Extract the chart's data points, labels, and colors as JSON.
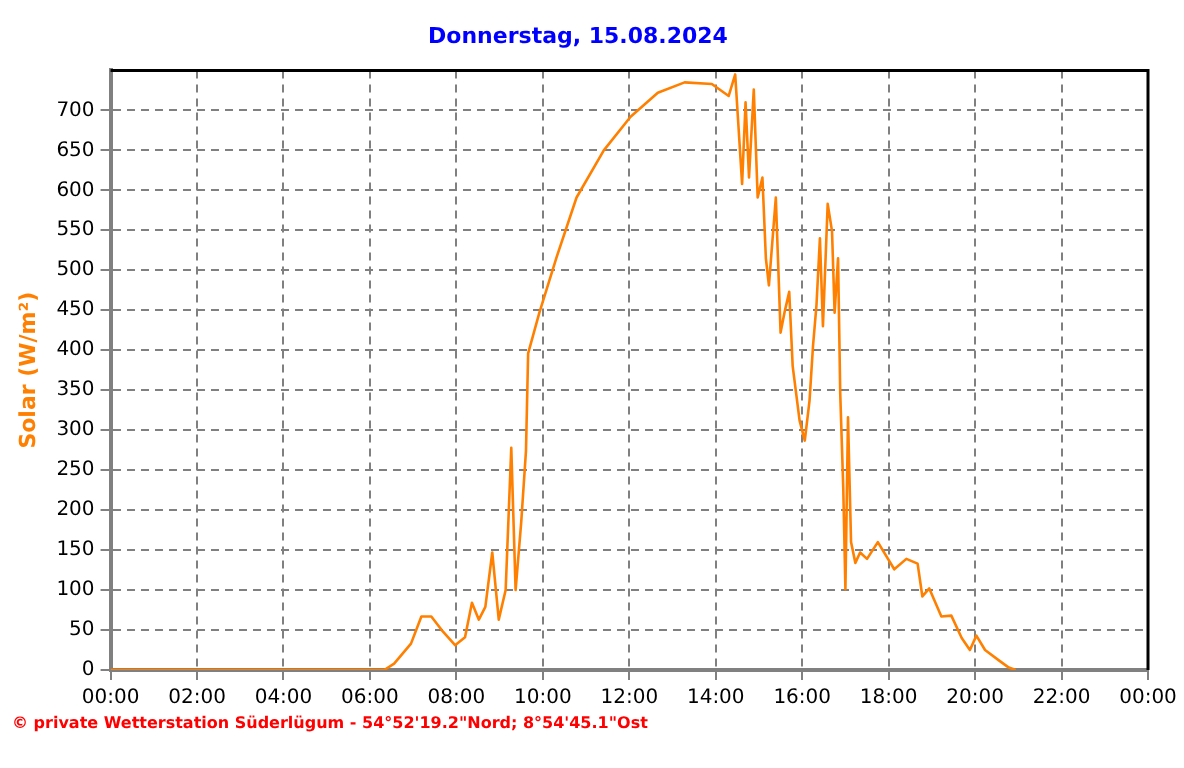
{
  "chart_data": {
    "type": "line",
    "title": "Donnerstag, 15.08.2024",
    "ylabel": "Solar (W/m²)",
    "annotations": [
      "© private Wetterstation Süderlügum - 54°52'19.2\"Nord; 8°54'45.1\"Ost"
    ],
    "series": [
      {
        "color": "#ff8000",
        "x": [
          0,
          6.33,
          6.56,
          6.95,
          7.19,
          7.42,
          7.66,
          7.97,
          8.2,
          8.36,
          8.52,
          8.67,
          8.83,
          8.98,
          9.14,
          9.27,
          9.37,
          9.5,
          9.61,
          9.66,
          9.92,
          10.31,
          10.78,
          11.41,
          12.03,
          12.66,
          13.28,
          13.91,
          14.3,
          14.45,
          14.61,
          14.69,
          14.77,
          14.88,
          14.97,
          15.08,
          15.16,
          15.23,
          15.39,
          15.5,
          15.59,
          15.7,
          15.78,
          15.86,
          15.94,
          16.06,
          16.17,
          16.25,
          16.33,
          16.41,
          16.48,
          16.59,
          16.69,
          16.75,
          16.83,
          16.88,
          16.95,
          17.0,
          17.06,
          17.13,
          17.23,
          17.34,
          17.5,
          17.75,
          18.13,
          18.41,
          18.67,
          18.78,
          18.94,
          19.22,
          19.45,
          19.69,
          19.88,
          20.03,
          20.23,
          20.55,
          20.78,
          20.94
        ],
        "values": [
          0,
          0,
          8,
          33,
          67,
          67,
          50,
          31,
          41,
          84,
          63,
          79,
          147,
          63,
          100,
          278,
          100,
          185,
          274,
          396,
          447,
          515,
          591,
          650,
          692,
          722,
          735,
          733,
          718,
          745,
          608,
          710,
          616,
          726,
          591,
          616,
          515,
          481,
          591,
          422,
          447,
          473,
          380,
          346,
          312,
          287,
          337,
          405,
          456,
          540,
          430,
          583,
          549,
          447,
          515,
          346,
          228,
          101,
          316,
          160,
          134,
          147,
          139,
          160,
          126,
          139,
          133,
          92,
          102,
          67,
          68,
          40,
          25,
          43,
          25,
          12,
          3,
          0
        ]
      }
    ],
    "xlim": [
      0,
      24
    ],
    "xticks": [
      {
        "value": 0,
        "label": "00:00"
      },
      {
        "value": 2,
        "label": "02:00"
      },
      {
        "value": 4,
        "label": "04:00"
      },
      {
        "value": 6,
        "label": "06:00"
      },
      {
        "value": 8,
        "label": "08:00"
      },
      {
        "value": 10,
        "label": "10:00"
      },
      {
        "value": 12,
        "label": "12:00"
      },
      {
        "value": 14,
        "label": "14:00"
      },
      {
        "value": 16,
        "label": "16:00"
      },
      {
        "value": 18,
        "label": "18:00"
      },
      {
        "value": 20,
        "label": "20:00"
      },
      {
        "value": 22,
        "label": "22:00"
      },
      {
        "value": 24,
        "label": "00:00"
      }
    ],
    "ylim": [
      0,
      750
    ],
    "yticks": [
      0,
      50,
      100,
      150,
      200,
      250,
      300,
      350,
      400,
      450,
      500,
      550,
      600,
      650,
      700
    ],
    "grid": true,
    "legend": false,
    "marker": "none",
    "line_style": "solid"
  }
}
